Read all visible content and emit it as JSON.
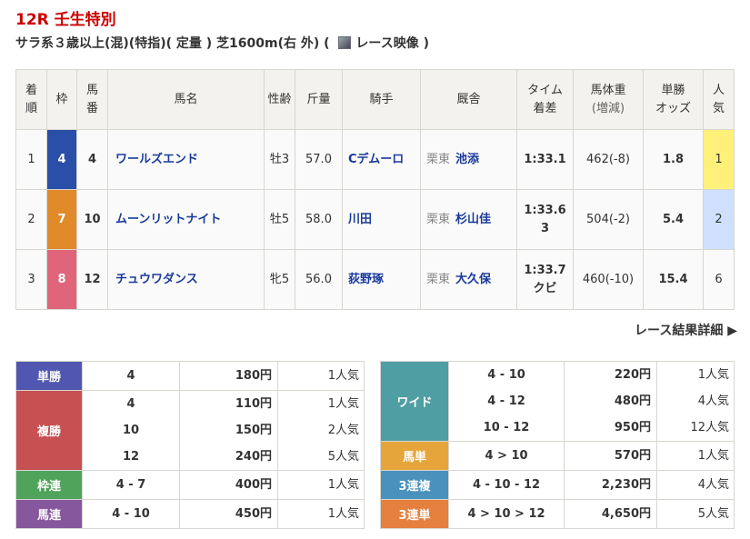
{
  "race": {
    "title": "12R 壬生特別",
    "conditions": "サラ系３歳以上(混)(特指)( 定量 ) 芝1600m(右 外) ( ",
    "video_label": "レース映像 )"
  },
  "headers": [
    "着順",
    "枠",
    "馬番",
    "馬名",
    "性齢",
    "斤量",
    "騎手",
    "厩舎",
    "タイム着差",
    "馬体重(増減)",
    "単勝オッズ",
    "人気"
  ],
  "headers_split": [
    [
      "着",
      "順"
    ],
    [
      "枠"
    ],
    [
      "馬",
      "番"
    ],
    [
      "馬名"
    ],
    [
      "性齢"
    ],
    [
      "斤量"
    ],
    [
      "騎手"
    ],
    [
      "厩舎"
    ],
    [
      "タイム",
      "着差"
    ],
    [
      "馬体重",
      "(増減)"
    ],
    [
      "単勝",
      "オッズ"
    ],
    [
      "人",
      "気"
    ]
  ],
  "results": [
    {
      "rank": "1",
      "waku": "4",
      "waku_color": "#2a4fa8",
      "num": "4",
      "name": "ワールズエンド",
      "sexage": "牡3",
      "weight": "57.0",
      "jockey": "Cデムーロ",
      "stable_loc": "栗東",
      "trainer": "池添",
      "time": "1:33.1",
      "margin": "",
      "body": "462(-8)",
      "odds": "1.8",
      "pop": "1",
      "pop_bg": "#fff07a"
    },
    {
      "rank": "2",
      "waku": "7",
      "waku_color": "#e08a2a",
      "num": "10",
      "name": "ムーンリットナイト",
      "sexage": "牡5",
      "weight": "58.0",
      "jockey": "川田",
      "stable_loc": "栗東",
      "trainer": "杉山佳",
      "time": "1:33.6",
      "margin": "3",
      "body": "504(-2)",
      "odds": "5.4",
      "pop": "2",
      "pop_bg": "#cfe0fc"
    },
    {
      "rank": "3",
      "waku": "8",
      "waku_color": "#e0647a",
      "num": "12",
      "name": "チュウワダンス",
      "sexage": "牝5",
      "weight": "56.0",
      "jockey": "荻野琢",
      "stable_loc": "栗東",
      "trainer": "大久保",
      "time": "1:33.7",
      "margin": "クビ",
      "body": "460(-10)",
      "odds": "15.4",
      "pop": "6",
      "pop_bg": ""
    }
  ],
  "detail_link": "レース結果詳細 ▶",
  "payouts_left": [
    {
      "label": "単勝",
      "color": "#5157b0",
      "combos": [
        "4"
      ],
      "amounts": [
        "180円"
      ],
      "pops": [
        "1人気"
      ]
    },
    {
      "label": "複勝",
      "color": "#c75052",
      "combos": [
        "4",
        "10",
        "12"
      ],
      "amounts": [
        "110円",
        "150円",
        "240円"
      ],
      "pops": [
        "1人気",
        "2人気",
        "5人気"
      ]
    },
    {
      "label": "枠連",
      "color": "#4fa35a",
      "combos": [
        "4 - 7"
      ],
      "amounts": [
        "400円"
      ],
      "pops": [
        "1人気"
      ]
    },
    {
      "label": "馬連",
      "color": "#86579c",
      "combos": [
        "4 - 10"
      ],
      "amounts": [
        "450円"
      ],
      "pops": [
        "1人気"
      ]
    }
  ],
  "payouts_right": [
    {
      "label": "ワイド",
      "color": "#4f9ea3",
      "combos": [
        "4 - 10",
        "4 - 12",
        "10 - 12"
      ],
      "amounts": [
        "220円",
        "480円",
        "950円"
      ],
      "pops": [
        "1人気",
        "4人気",
        "12人気"
      ]
    },
    {
      "label": "馬単",
      "color": "#e6a53a",
      "combos": [
        "4 > 10"
      ],
      "amounts": [
        "570円"
      ],
      "pops": [
        "1人気"
      ]
    },
    {
      "label": "3連複",
      "color": "#4a92bd",
      "combos": [
        "4 - 10 - 12"
      ],
      "amounts": [
        "2,230円"
      ],
      "pops": [
        "4人気"
      ]
    },
    {
      "label": "3連単",
      "color": "#e5803f",
      "combos": [
        "4 > 10 > 12"
      ],
      "amounts": [
        "4,650円"
      ],
      "pops": [
        "5人気"
      ]
    }
  ]
}
